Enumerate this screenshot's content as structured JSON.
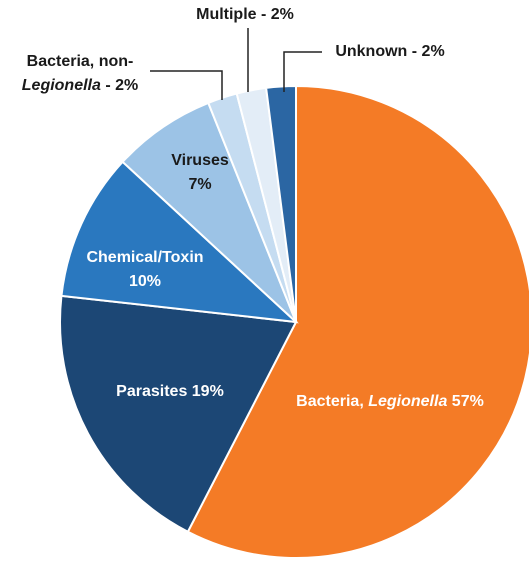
{
  "chart_data": {
    "type": "pie",
    "values": [
      57,
      19,
      10,
      7,
      2,
      2,
      2
    ],
    "colors": [
      "#f47b26",
      "#1c4775",
      "#2a78bf",
      "#9cc3e6",
      "#c5dcf1",
      "#e3edf7",
      "#2b66a3"
    ],
    "labels": [
      [
        [
          {
            "text": "Bacteria, "
          },
          {
            "text": "Legionella",
            "italic": true
          },
          {
            "text": " 57%"
          }
        ]
      ],
      [
        [
          {
            "text": "Parasites 19%"
          }
        ]
      ],
      [
        [
          {
            "text": "Chemical/Toxin"
          }
        ],
        [
          {
            "text": "10%"
          }
        ]
      ],
      [
        [
          {
            "text": "Viruses"
          }
        ],
        [
          {
            "text": "7%"
          }
        ]
      ],
      [
        [
          {
            "text": "Bacteria, non-"
          }
        ],
        [
          {
            "text": "Legionella",
            "italic": true
          },
          {
            "text": " - 2%"
          }
        ]
      ],
      [
        [
          {
            "text": "Multiple - 2%"
          }
        ]
      ],
      [
        [
          {
            "text": "Unknown - 2%"
          }
        ]
      ]
    ]
  }
}
